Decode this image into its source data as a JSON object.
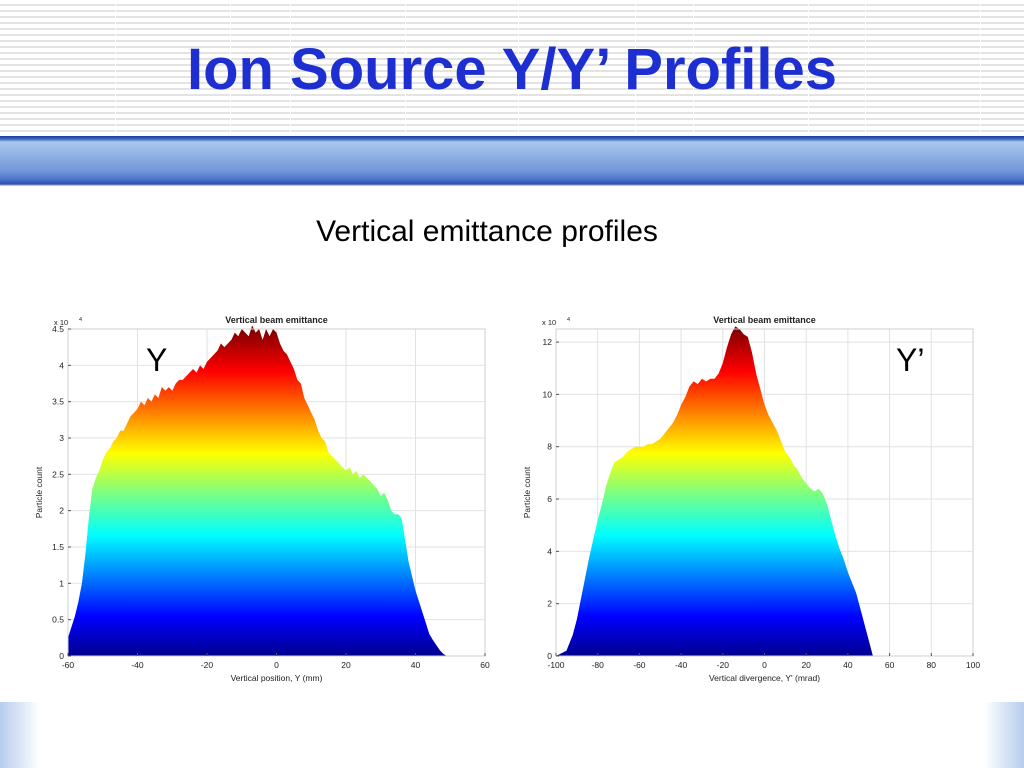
{
  "slide": {
    "title": "Ion Source Y/Y’ Profiles",
    "subtitle": "Vertical emittance profiles",
    "left_label": "Y",
    "right_label": "Y’"
  },
  "colors": {
    "title": "#1d2fd0",
    "gradient_bottom": "#00008f",
    "gradient_top": "#800000"
  },
  "chart_data": [
    {
      "type": "area",
      "title": "Vertical beam emittance",
      "xlabel": "Vertical position, Y (mm)",
      "ylabel": "Particle count",
      "exponent_label": "x 10",
      "exponent_power": "4",
      "xlim": [
        -60,
        60
      ],
      "ylim": [
        0,
        4.5
      ],
      "xticks": [
        -60,
        -40,
        -20,
        0,
        20,
        40,
        60
      ],
      "yticks": [
        0,
        0.5,
        1,
        1.5,
        2,
        2.5,
        3,
        3.5,
        4,
        4.5
      ],
      "tick_labels_x": [
        "-60",
        "-40",
        "-20",
        "0",
        "20",
        "40",
        "60"
      ],
      "tick_labels_y": [
        "0",
        "0.5",
        "1",
        "1.5",
        "2",
        "2.5",
        "3",
        "3.5",
        "4",
        "4.5"
      ],
      "grid": true,
      "colormap": "jet",
      "x": [
        -60,
        -59,
        -58,
        -57,
        -56,
        -55,
        -54,
        -53,
        -52,
        -51,
        -50,
        -49,
        -48,
        -47,
        -46,
        -45,
        -44,
        -43,
        -42,
        -41,
        -40,
        -39,
        -38,
        -37,
        -36,
        -35,
        -34,
        -33,
        -32,
        -31,
        -30,
        -29,
        -28,
        -27,
        -26,
        -25,
        -24,
        -23,
        -22,
        -21,
        -20,
        -19,
        -18,
        -17,
        -16,
        -15,
        -14,
        -13,
        -12,
        -11,
        -10,
        -9,
        -8,
        -7,
        -6,
        -5,
        -4,
        -3,
        -2,
        -1,
        0,
        1,
        2,
        3,
        4,
        5,
        6,
        7,
        8,
        9,
        10,
        11,
        12,
        13,
        14,
        15,
        16,
        17,
        18,
        19,
        20,
        21,
        22,
        23,
        24,
        25,
        26,
        27,
        28,
        29,
        30,
        31,
        32,
        33,
        34,
        35,
        36,
        37,
        38,
        39,
        40,
        41,
        42,
        43,
        44,
        45,
        46,
        47,
        48,
        49
      ],
      "values": [
        0.25,
        0.4,
        0.55,
        0.75,
        1.0,
        1.4,
        1.9,
        2.3,
        2.45,
        2.55,
        2.7,
        2.8,
        2.85,
        2.95,
        3.0,
        3.1,
        3.1,
        3.2,
        3.3,
        3.35,
        3.4,
        3.5,
        3.45,
        3.55,
        3.5,
        3.6,
        3.55,
        3.7,
        3.65,
        3.7,
        3.65,
        3.75,
        3.8,
        3.8,
        3.85,
        3.9,
        3.95,
        3.9,
        4.0,
        3.95,
        4.05,
        4.1,
        4.15,
        4.2,
        4.3,
        4.25,
        4.3,
        4.35,
        4.45,
        4.4,
        4.5,
        4.45,
        4.4,
        4.55,
        4.45,
        4.5,
        4.35,
        4.5,
        4.4,
        4.5,
        4.45,
        4.3,
        4.2,
        4.15,
        4.05,
        3.95,
        3.8,
        3.75,
        3.55,
        3.45,
        3.35,
        3.25,
        3.1,
        3.0,
        2.95,
        2.8,
        2.75,
        2.7,
        2.65,
        2.6,
        2.55,
        2.6,
        2.5,
        2.55,
        2.45,
        2.5,
        2.45,
        2.4,
        2.35,
        2.3,
        2.2,
        2.25,
        2.15,
        2.0,
        1.95,
        1.95,
        1.9,
        1.6,
        1.3,
        1.1,
        0.9,
        0.75,
        0.6,
        0.45,
        0.3,
        0.22,
        0.15,
        0.08,
        0.03,
        0.0
      ]
    },
    {
      "type": "area",
      "title": "Vertical beam emittance",
      "xlabel": "Vertical divergence, Y' (mrad)",
      "ylabel": "Particle count",
      "exponent_label": "x 10",
      "exponent_power": "4",
      "xlim": [
        -100,
        100
      ],
      "ylim": [
        0,
        12.5
      ],
      "xticks": [
        -100,
        -80,
        -60,
        -40,
        -20,
        0,
        20,
        40,
        60,
        80,
        100
      ],
      "yticks": [
        0,
        2,
        4,
        6,
        8,
        10,
        12
      ],
      "tick_labels_x": [
        "-100",
        "-80",
        "-60",
        "-40",
        "-20",
        "0",
        "20",
        "40",
        "60",
        "80",
        "100"
      ],
      "tick_labels_y": [
        "0",
        "2",
        "4",
        "6",
        "8",
        "10",
        "12"
      ],
      "grid": true,
      "colormap": "jet",
      "x": [
        -100,
        -95,
        -92,
        -90,
        -88,
        -86,
        -84,
        -82,
        -80,
        -78,
        -76,
        -74,
        -72,
        -70,
        -68,
        -66,
        -64,
        -62,
        -60,
        -58,
        -56,
        -54,
        -52,
        -50,
        -48,
        -46,
        -44,
        -42,
        -40,
        -38,
        -36,
        -34,
        -32,
        -30,
        -28,
        -26,
        -24,
        -22,
        -20,
        -18,
        -16,
        -14,
        -12,
        -10,
        -8,
        -6,
        -4,
        -2,
        0,
        2,
        4,
        6,
        8,
        10,
        12,
        14,
        16,
        18,
        20,
        22,
        24,
        26,
        28,
        30,
        32,
        34,
        36,
        38,
        40,
        42,
        44,
        46,
        48,
        50,
        52
      ],
      "values": [
        0,
        0.2,
        0.8,
        1.4,
        2.2,
        3.0,
        3.8,
        4.5,
        5.2,
        5.8,
        6.5,
        7.0,
        7.4,
        7.5,
        7.6,
        7.8,
        7.9,
        8.0,
        8.0,
        8.0,
        8.1,
        8.1,
        8.2,
        8.3,
        8.5,
        8.7,
        8.9,
        9.2,
        9.6,
        9.9,
        10.3,
        10.5,
        10.4,
        10.6,
        10.5,
        10.6,
        10.6,
        10.8,
        11.2,
        11.8,
        12.3,
        12.6,
        12.5,
        12.3,
        12.2,
        11.6,
        10.8,
        10.2,
        9.6,
        9.2,
        8.9,
        8.6,
        8.2,
        7.8,
        7.6,
        7.3,
        7.1,
        6.8,
        6.6,
        6.4,
        6.3,
        6.4,
        6.2,
        5.8,
        5.2,
        4.6,
        4.1,
        3.7,
        3.2,
        2.8,
        2.4,
        1.8,
        1.2,
        0.6,
        0.0
      ]
    }
  ]
}
